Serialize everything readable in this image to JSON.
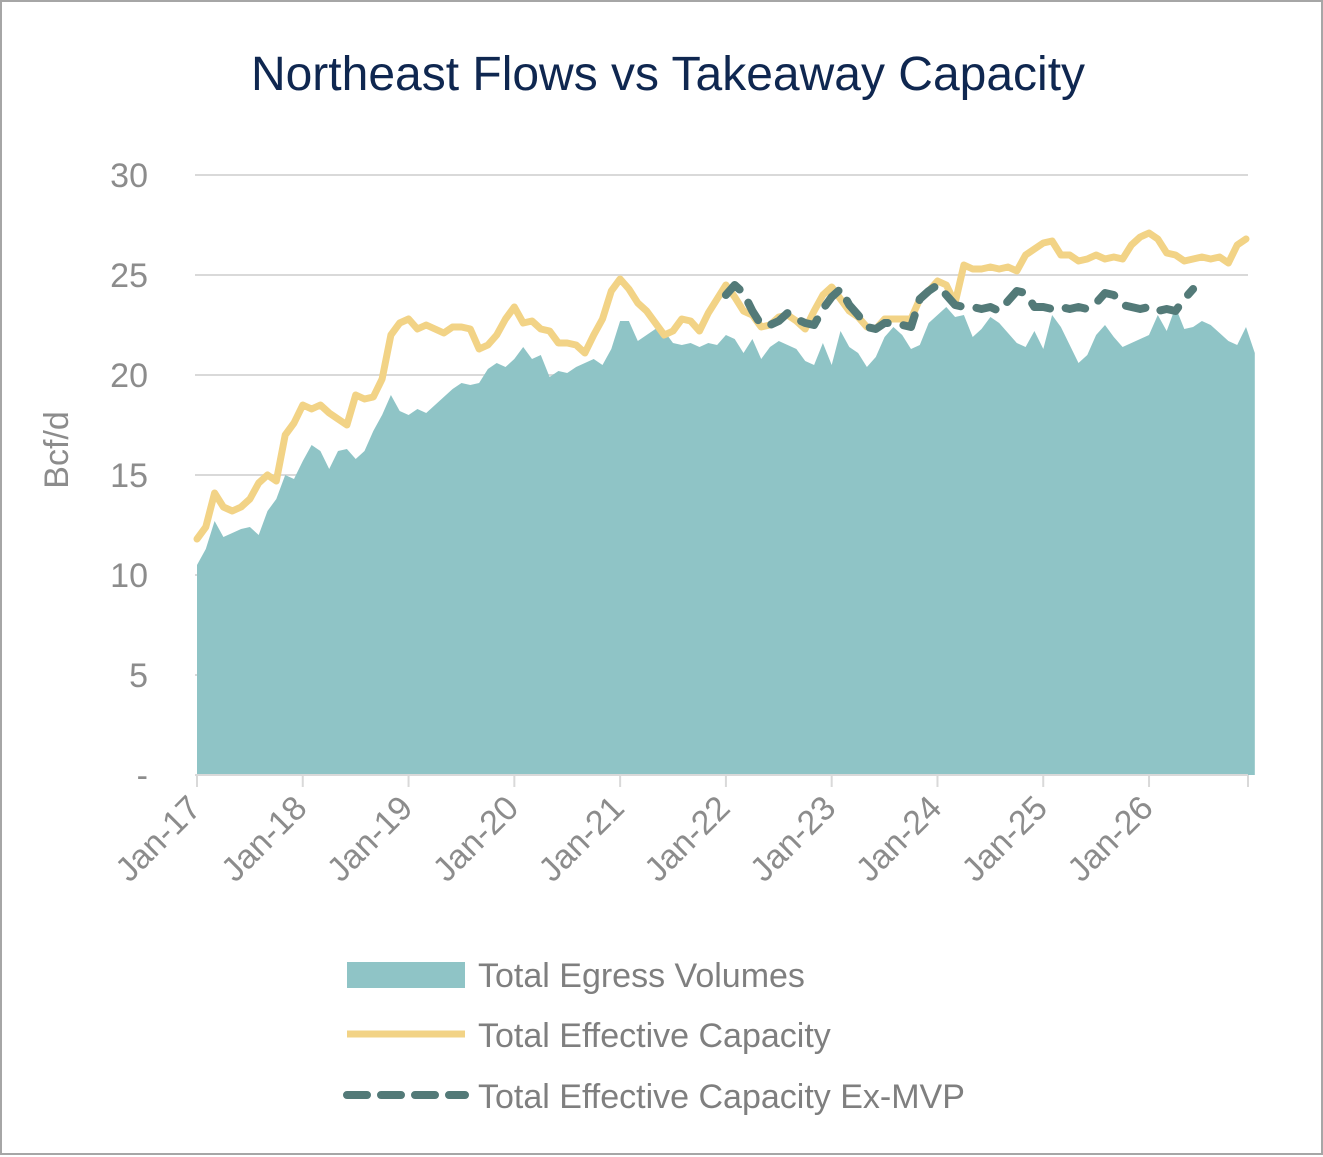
{
  "chart_data": {
    "type": "area",
    "title": "Northeast Flows vs Takeaway Capacity",
    "ylabel": "Bcf/d",
    "xlabel": "",
    "ylim": [
      0,
      30
    ],
    "y_ticks": [
      "-",
      "5",
      "10",
      "15",
      "20",
      "25",
      "30"
    ],
    "x_ticks": [
      "Jan-17",
      "Jan-18",
      "Jan-19",
      "Jan-20",
      "Jan-21",
      "Jan-22",
      "Jan-23",
      "Jan-24",
      "Jan-25",
      "Jan-26"
    ],
    "grid": true,
    "legend_position": "bottom",
    "x_start": "Jan-17",
    "x_frequency": "monthly",
    "series": [
      {
        "name": "Total Egress Volumes",
        "style": "area",
        "color": "#8fc4c6",
        "values": [
          10.5,
          11.3,
          12.7,
          11.9,
          12.1,
          12.3,
          12.4,
          12.0,
          13.2,
          13.8,
          15.0,
          14.8,
          15.7,
          16.5,
          16.2,
          15.3,
          16.2,
          16.3,
          15.8,
          16.2,
          17.2,
          18.0,
          19.0,
          18.2,
          18.0,
          18.3,
          18.1,
          18.5,
          18.9,
          19.3,
          19.6,
          19.5,
          19.6,
          20.3,
          20.6,
          20.4,
          20.8,
          21.4,
          20.8,
          21.0,
          19.9,
          20.2,
          20.1,
          20.4,
          20.6,
          20.8,
          20.5,
          21.3,
          22.7,
          22.7,
          21.7,
          22.0,
          22.3,
          22.2,
          21.6,
          21.5,
          21.6,
          21.4,
          21.6,
          21.5,
          22.0,
          21.8,
          21.1,
          21.8,
          20.8,
          21.4,
          21.7,
          21.5,
          21.3,
          20.7,
          20.5,
          21.6,
          20.5,
          22.2,
          21.4,
          21.1,
          20.4,
          20.9,
          21.9,
          22.4,
          22.0,
          21.3,
          21.5,
          22.6,
          23.0,
          23.4,
          22.9,
          23.0,
          21.9,
          22.3,
          22.9,
          22.6,
          22.1,
          21.6,
          21.4,
          22.2,
          21.3,
          23.0,
          22.4,
          21.5,
          20.6,
          21.0,
          22.0,
          22.5,
          21.9,
          21.4,
          21.6,
          21.8,
          22.0,
          23.0,
          22.2,
          23.4,
          22.3,
          22.4,
          22.7,
          22.5,
          22.1,
          21.7,
          21.5,
          22.4,
          21.1
        ]
      },
      {
        "name": "Total Effective Capacity",
        "style": "line",
        "color": "#f2d386",
        "values": [
          11.8,
          12.4,
          14.1,
          13.4,
          13.2,
          13.4,
          13.8,
          14.6,
          15.0,
          14.7,
          17.0,
          17.6,
          18.5,
          18.3,
          18.5,
          18.1,
          17.8,
          17.5,
          19.0,
          18.8,
          18.9,
          19.8,
          22.0,
          22.6,
          22.8,
          22.3,
          22.5,
          22.3,
          22.1,
          22.4,
          22.4,
          22.3,
          21.3,
          21.5,
          22.0,
          22.8,
          23.4,
          22.6,
          22.7,
          22.3,
          22.2,
          21.6,
          21.6,
          21.5,
          21.1,
          22.0,
          22.8,
          24.2,
          24.8,
          24.3,
          23.6,
          23.2,
          22.6,
          22.0,
          22.2,
          22.8,
          22.7,
          22.2,
          23.1,
          23.8,
          24.5,
          23.9,
          23.2,
          23.0,
          22.4,
          22.5,
          22.9,
          23.0,
          22.7,
          22.3,
          23.2,
          24.0,
          24.4,
          23.8,
          23.2,
          22.9,
          22.4,
          22.3,
          22.8,
          22.8,
          22.8,
          22.8,
          23.8,
          24.2,
          24.7,
          24.5,
          23.6,
          25.5,
          25.3,
          25.3,
          25.4,
          25.3,
          25.4,
          25.2,
          26.0,
          26.3,
          26.6,
          26.7,
          26.0,
          26.0,
          25.7,
          25.8,
          26.0,
          25.8,
          25.9,
          25.8,
          26.5,
          26.9,
          27.1,
          26.8,
          26.1,
          26.0,
          25.7,
          25.8,
          25.9,
          25.8,
          25.9,
          25.6,
          26.5,
          26.8
        ]
      },
      {
        "name": "Total Effective Capacity Ex-MVP",
        "style": "dashed",
        "color": "#537a78",
        "start_index": 60,
        "values": [
          24.0,
          24.5,
          24.1,
          23.2,
          22.5,
          22.5,
          22.7,
          23.1,
          22.8,
          22.6,
          22.5,
          23.3,
          23.9,
          24.3,
          23.5,
          23.0,
          22.4,
          22.3,
          22.6,
          22.6,
          22.5,
          22.4,
          23.8,
          24.2,
          24.5,
          24.0,
          23.5,
          23.4,
          23.4,
          23.3,
          23.4,
          23.2,
          23.7,
          24.2,
          24.1,
          23.4,
          23.4,
          23.3,
          23.4,
          23.3,
          23.4,
          23.3,
          23.6,
          24.1,
          24.0,
          23.5,
          23.4,
          23.3,
          23.4,
          23.2,
          23.3,
          23.2,
          23.8,
          24.3
        ]
      }
    ]
  }
}
